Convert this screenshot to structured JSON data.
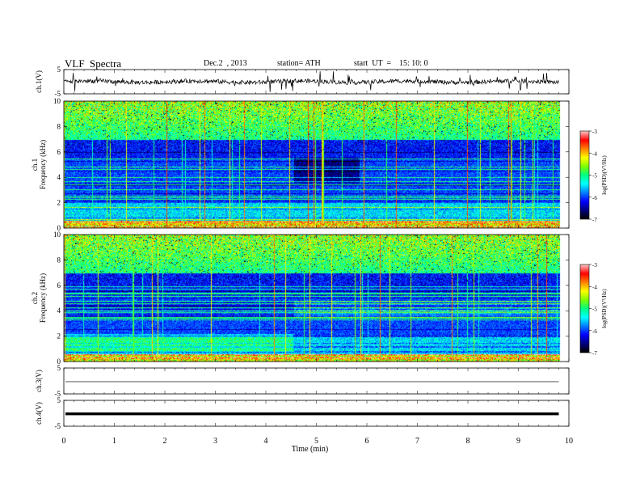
{
  "header": {
    "title": "VLF  Spectra",
    "date": "Dec.2  , 2013",
    "station": "station= ATH",
    "start": "start  UT  =    15: 10: 0"
  },
  "chart_data": [
    {
      "type": "line",
      "id": "ch1",
      "ylabel": "ch.1(V)",
      "ylim": [
        -5,
        5
      ],
      "yticks": [
        "5",
        "-5"
      ],
      "description_signal": "noisy waveform centered near 0 V with spikes",
      "xlim": [
        0,
        10
      ]
    },
    {
      "type": "heatmap",
      "id": "ch1-spectrogram",
      "ylabel": "ch.1\nFrequency  (kHz)",
      "ylim": [
        0,
        10
      ],
      "yticks": [
        "0",
        "2",
        "4",
        "6",
        "8",
        "10"
      ],
      "xlim": [
        0,
        10
      ],
      "data_end_min": 9.8,
      "colorbar": {
        "label": "log(PSD)(V²/Hz)",
        "range": [
          -7,
          -3
        ],
        "ticks": [
          "-3",
          "-4",
          "-5",
          "-6",
          "-7"
        ]
      }
    },
    {
      "type": "heatmap",
      "id": "ch2-spectrogram",
      "ylabel": "ch.2\nFrequency  (kHz)",
      "ylim": [
        0,
        10
      ],
      "yticks": [
        "0",
        "2",
        "4",
        "6",
        "8",
        "10"
      ],
      "xlim": [
        0,
        10
      ],
      "data_end_min": 9.8,
      "colorbar": {
        "label": "log(PSD)(V²/Hz)",
        "range": [
          -7,
          -3
        ],
        "ticks": [
          "-3",
          "-4",
          "-5",
          "-6",
          "-7"
        ]
      }
    },
    {
      "type": "line",
      "id": "ch3",
      "ylabel": "ch.3(V)",
      "ylim": [
        -5,
        5
      ],
      "yticks": [
        "5",
        "-5"
      ],
      "xlim": [
        0,
        10
      ]
    },
    {
      "type": "line",
      "id": "ch4",
      "ylabel": "ch.4(V)",
      "ylim": [
        -5,
        5
      ],
      "yticks": [
        "5",
        "-5"
      ],
      "xlim": [
        0,
        10
      ]
    }
  ],
  "xaxis": {
    "label": "Time  (min)",
    "ticks": [
      "0",
      "1",
      "2",
      "3",
      "4",
      "5",
      "6",
      "7",
      "8",
      "9",
      "10"
    ]
  },
  "colors": {
    "scale": [
      "#000000",
      "#000080",
      "#0000ff",
      "#0080ff",
      "#00ffff",
      "#00ff80",
      "#80ff00",
      "#ffff00",
      "#ff8000",
      "#ff0000",
      "#ffc0c0"
    ]
  }
}
